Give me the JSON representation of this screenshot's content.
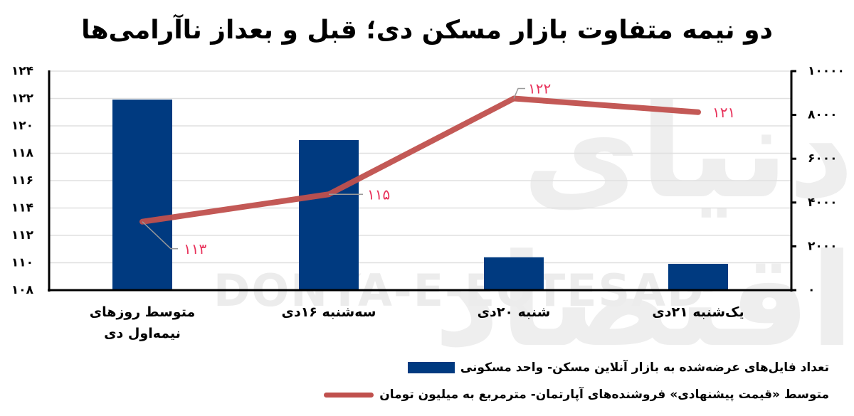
{
  "title": "دو نیمه متفاوت بازار مسکن دی؛ قبل و بعداز ناآرامی‌ها",
  "watermark": {
    "latin": "DONYA-E-EQTESAD",
    "persian": "دنیای اقتصاد"
  },
  "colors": {
    "bar": "#003a80",
    "line": "#c0504d",
    "label": "#e8315a",
    "grid": "#e0e0e0",
    "axis": "#000000"
  },
  "axes": {
    "left_ticks": [
      "۱۰۸",
      "۱۱۰",
      "۱۱۲",
      "۱۱۴",
      "۱۱۶",
      "۱۱۸",
      "۱۲۰",
      "۱۲۲",
      "۱۲۴"
    ],
    "right_ticks": [
      "۰",
      "۲۰۰۰",
      "۴۰۰۰",
      "۶۰۰۰",
      "۸۰۰۰",
      "۱۰۰۰۰"
    ]
  },
  "categories": [
    {
      "line1": "متوسط روزهای",
      "line2": "نیمه‌اول دی"
    },
    {
      "line1": "سه‌شنبه ۱۶دی",
      "line2": ""
    },
    {
      "line1": "شنبه ۲۰دی",
      "line2": ""
    },
    {
      "line1": "یک‌شنبه ۲۱دی",
      "line2": ""
    }
  ],
  "point_labels": [
    "۱۱۳",
    "۱۱۵",
    "۱۲۲",
    "۱۲۱"
  ],
  "legend": {
    "bar": "تعداد فایل‌های عرضه‌شده به بازار آنلاین مسکن- واحد مسکونی",
    "line": "متوسط «قیمت پیشنهادی» فروشنده‌های آپارتمان- مترمربع به میلیون تومان"
  },
  "chart_data": {
    "type": "bar",
    "title": "دو نیمه متفاوت بازار مسکن دی؛ قبل و بعداز ناآرامی‌ها",
    "categories": [
      "متوسط روزهای نیمه‌اول دی",
      "سه‌شنبه ۱۶دی",
      "شنبه ۲۰دی",
      "یک‌شنبه ۲۱دی"
    ],
    "series": [
      {
        "name": "تعداد فایل‌های عرضه‌شده به بازار آنلاین مسکن- واحد مسکونی",
        "type": "bar",
        "axis": "right",
        "values": [
          8700,
          6850,
          1500,
          1200
        ]
      },
      {
        "name": "متوسط «قیمت پیشنهادی» فروشنده‌های آپارتمان- مترمربع به میلیون تومان",
        "type": "line",
        "axis": "left",
        "values": [
          113,
          115,
          122,
          121
        ]
      }
    ],
    "left_ylim": [
      108,
      124
    ],
    "right_ylim": [
      0,
      10000
    ],
    "xlabel": "",
    "ylabel": "",
    "grid": true,
    "legend_position": "bottom"
  }
}
